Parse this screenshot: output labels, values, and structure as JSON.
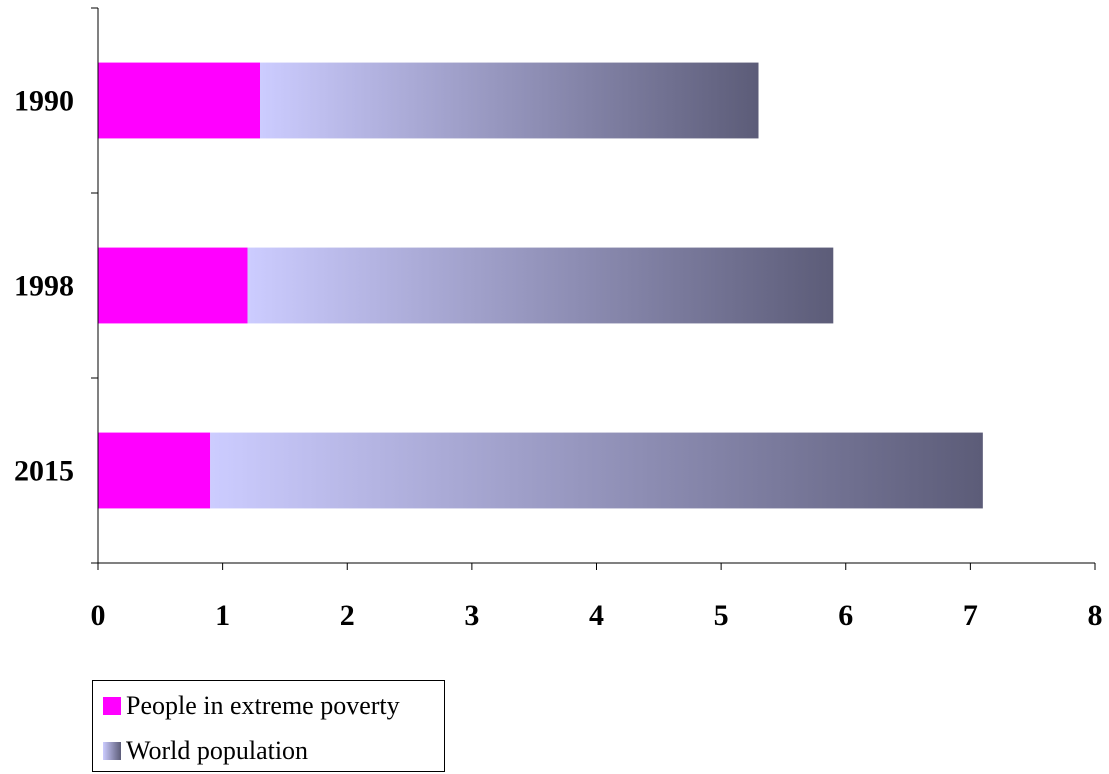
{
  "chart_data": {
    "type": "bar",
    "orientation": "horizontal",
    "stacked": true,
    "categories": [
      "1990",
      "1998",
      "2015"
    ],
    "series": [
      {
        "name": "People in extreme poverty",
        "values": [
          1.3,
          1.2,
          0.9
        ],
        "color": "#ff00ff"
      },
      {
        "name": "World population",
        "values": [
          4.0,
          4.7,
          6.2
        ],
        "gradient": [
          "#ccccff",
          "#5c5c78"
        ]
      }
    ],
    "xlim": [
      0,
      8
    ],
    "xticks": [
      "0",
      "1",
      "2",
      "3",
      "4",
      "5",
      "6",
      "7",
      "8"
    ],
    "grid": false,
    "legend_position": "bottom-left"
  }
}
